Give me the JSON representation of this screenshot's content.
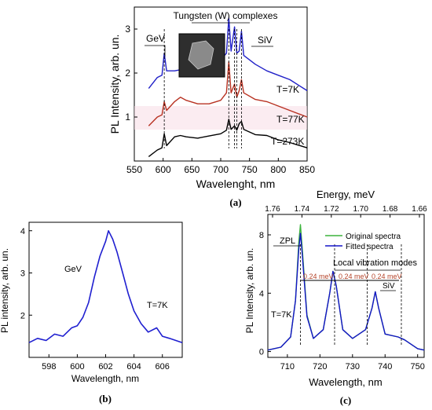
{
  "panel_labels": {
    "a": "(a)",
    "b": "(b)",
    "c": "(c)"
  },
  "chart_data": [
    {
      "id": "a",
      "type": "line",
      "xlabel": "Wavelenght, nm",
      "ylabel": "PL Intensity, arb. un.",
      "xlim": [
        550,
        850
      ],
      "ylim": [
        0,
        3.5
      ],
      "xticks": [
        550,
        600,
        650,
        700,
        750,
        800,
        850
      ],
      "yticks": [
        1,
        2,
        3
      ],
      "grid": false,
      "series": [
        {
          "name": "T=273K",
          "color": "#000000",
          "points": [
            [
              575,
              0.1
            ],
            [
              590,
              0.25
            ],
            [
              598,
              0.3
            ],
            [
              602,
              0.62
            ],
            [
              606,
              0.35
            ],
            [
              620,
              0.55
            ],
            [
              630,
              0.58
            ],
            [
              640,
              0.55
            ],
            [
              660,
              0.52
            ],
            [
              680,
              0.57
            ],
            [
              700,
              0.62
            ],
            [
              710,
              0.7
            ],
            [
              714,
              0.95
            ],
            [
              718,
              0.72
            ],
            [
              724,
              0.8
            ],
            [
              728,
              0.7
            ],
            [
              732,
              0.85
            ],
            [
              736,
              0.9
            ],
            [
              740,
              0.72
            ],
            [
              760,
              0.6
            ],
            [
              780,
              0.58
            ],
            [
              800,
              0.48
            ],
            [
              820,
              0.42
            ],
            [
              850,
              0.3
            ]
          ]
        },
        {
          "name": "T=77K",
          "color": "#b83222",
          "points": [
            [
              575,
              0.8
            ],
            [
              590,
              1.0
            ],
            [
              598,
              1.05
            ],
            [
              602,
              1.35
            ],
            [
              606,
              1.15
            ],
            [
              620,
              1.35
            ],
            [
              630,
              1.45
            ],
            [
              640,
              1.38
            ],
            [
              660,
              1.3
            ],
            [
              680,
              1.3
            ],
            [
              700,
              1.38
            ],
            [
              710,
              1.55
            ],
            [
              714,
              2.25
            ],
            [
              718,
              1.55
            ],
            [
              724,
              1.75
            ],
            [
              728,
              1.45
            ],
            [
              732,
              1.6
            ],
            [
              736,
              1.85
            ],
            [
              740,
              1.55
            ],
            [
              760,
              1.4
            ],
            [
              780,
              1.35
            ],
            [
              800,
              1.25
            ],
            [
              820,
              1.15
            ],
            [
              850,
              1.0
            ]
          ]
        },
        {
          "name": "T=7K",
          "color": "#2020c8",
          "points": [
            [
              575,
              1.65
            ],
            [
              590,
              1.9
            ],
            [
              598,
              1.95
            ],
            [
              602,
              2.45
            ],
            [
              606,
              2.05
            ],
            [
              620,
              2.05
            ],
            [
              640,
              2.1
            ],
            [
              660,
              2.1
            ],
            [
              680,
              2.15
            ],
            [
              700,
              2.3
            ],
            [
              710,
              2.45
            ],
            [
              714,
              3.25
            ],
            [
              718,
              2.5
            ],
            [
              724,
              3.05
            ],
            [
              728,
              2.45
            ],
            [
              732,
              2.5
            ],
            [
              736,
              2.95
            ],
            [
              740,
              2.4
            ],
            [
              760,
              2.2
            ],
            [
              780,
              2.05
            ],
            [
              800,
              1.95
            ],
            [
              820,
              1.85
            ],
            [
              850,
              1.6
            ]
          ]
        }
      ],
      "temperature_labels": [
        "T=7K",
        "T=77K",
        "T=273K"
      ],
      "annotations": [
        "GeV",
        "Tungsten (W) complexes",
        "SiV"
      ],
      "marker_lines_x": [
        602,
        714,
        724,
        728,
        736
      ]
    },
    {
      "id": "b",
      "type": "line",
      "xlabel": "Wavelength, nm",
      "ylabel": "PL intensity, arb. un.",
      "xlim": [
        596.6,
        607.4
      ],
      "ylim": [
        1,
        4.2
      ],
      "xticks": [
        598,
        600,
        602,
        604,
        606
      ],
      "yticks": [
        2,
        3,
        4
      ],
      "grid": false,
      "series": [
        {
          "name": "T=7K",
          "color": "#1f1fd0",
          "points": [
            [
              596.6,
              1.35
            ],
            [
              597.2,
              1.45
            ],
            [
              597.8,
              1.4
            ],
            [
              598.4,
              1.55
            ],
            [
              599,
              1.5
            ],
            [
              599.6,
              1.7
            ],
            [
              600,
              1.75
            ],
            [
              600.4,
              1.95
            ],
            [
              600.8,
              2.3
            ],
            [
              601.2,
              2.9
            ],
            [
              601.6,
              3.4
            ],
            [
              602,
              3.75
            ],
            [
              602.2,
              4.0
            ],
            [
              602.5,
              3.8
            ],
            [
              602.8,
              3.5
            ],
            [
              603.2,
              3.0
            ],
            [
              603.6,
              2.5
            ],
            [
              604,
              2.1
            ],
            [
              604.5,
              1.8
            ],
            [
              605,
              1.6
            ],
            [
              605.6,
              1.7
            ],
            [
              606,
              1.5
            ],
            [
              606.5,
              1.45
            ],
            [
              607.4,
              1.35
            ]
          ]
        }
      ],
      "annotations": [
        "GeV",
        "T=7K"
      ]
    },
    {
      "id": "c",
      "type": "line",
      "xlabel": "Wavelength, nm",
      "ylabel": "PL Intensity, arb. un.",
      "top_xlabel": "Energy, meV",
      "xlim": [
        704,
        752
      ],
      "ylim": [
        -0.4,
        9.4
      ],
      "xticks": [
        710,
        720,
        730,
        740,
        750
      ],
      "yticks": [
        0,
        4,
        8
      ],
      "top_xticks": [
        "1.76",
        "1.74",
        "1.72",
        "1.70",
        "1.68",
        "1.66"
      ],
      "grid": false,
      "legend_position": "top-right",
      "series": [
        {
          "name": "Original spectra",
          "color": "#3cb43c",
          "points": [
            [
              704,
              0.1
            ],
            [
              708,
              0.3
            ],
            [
              711,
              1.0
            ],
            [
              712.5,
              3.5
            ],
            [
              713.5,
              7.5
            ],
            [
              714,
              8.7
            ],
            [
              714.6,
              7.0
            ],
            [
              716,
              2.5
            ],
            [
              718,
              0.9
            ],
            [
              721,
              1.5
            ],
            [
              723,
              4.0
            ],
            [
              724,
              5.5
            ],
            [
              725,
              4.5
            ],
            [
              727,
              1.5
            ],
            [
              730,
              0.9
            ],
            [
              734,
              1.5
            ],
            [
              736,
              3.0
            ],
            [
              737,
              4.1
            ],
            [
              738,
              3.0
            ],
            [
              740,
              1.2
            ],
            [
              744,
              1.0
            ],
            [
              746,
              0.8
            ],
            [
              750,
              0.2
            ],
            [
              752,
              0.1
            ]
          ]
        },
        {
          "name": "Fitted spectra",
          "color": "#1515c8",
          "points": [
            [
              704,
              0.1
            ],
            [
              708,
              0.3
            ],
            [
              711,
              1.0
            ],
            [
              712.5,
              3.5
            ],
            [
              713.5,
              7.0
            ],
            [
              714,
              8.1
            ],
            [
              714.6,
              6.6
            ],
            [
              716,
              2.4
            ],
            [
              718,
              0.9
            ],
            [
              721,
              1.5
            ],
            [
              723,
              4.0
            ],
            [
              724,
              5.5
            ],
            [
              725,
              4.5
            ],
            [
              727,
              1.5
            ],
            [
              730,
              0.9
            ],
            [
              734,
              1.5
            ],
            [
              736,
              3.0
            ],
            [
              737,
              4.1
            ],
            [
              738,
              3.0
            ],
            [
              740,
              1.2
            ],
            [
              744,
              1.0
            ],
            [
              746,
              0.8
            ],
            [
              750,
              0.2
            ],
            [
              752,
              0.1
            ]
          ]
        }
      ],
      "annotations": [
        "ZPL",
        "Local vibration modes",
        "0.24 meV",
        "0.24 meV",
        "0.24 meV",
        "SiV",
        "T=7K"
      ],
      "marker_lines_x": [
        714,
        724.5,
        734.5,
        745
      ]
    }
  ]
}
